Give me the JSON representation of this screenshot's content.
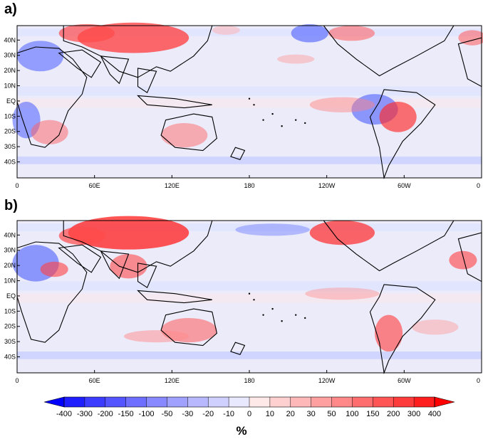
{
  "panels": [
    {
      "label": "a)"
    },
    {
      "label": "b)"
    }
  ],
  "lat_ticks": [
    "40N",
    "30N",
    "20N",
    "10N",
    "EQ",
    "10S",
    "20S",
    "30S",
    "40S"
  ],
  "lon_ticks": [
    "0",
    "60E",
    "120E",
    "180",
    "120W",
    "60W",
    "0"
  ],
  "colorbar": {
    "levels": [
      "-400",
      "-300",
      "-200",
      "-150",
      "-100",
      "-50",
      "-30",
      "-20",
      "-10",
      "0",
      "10",
      "20",
      "30",
      "50",
      "100",
      "150",
      "200",
      "300",
      "400"
    ],
    "colors": [
      "#0000ff",
      "#1e1eff",
      "#3c3cff",
      "#5555ff",
      "#6e6eff",
      "#8888ff",
      "#a0a0ff",
      "#b8b8ff",
      "#d0d0ff",
      "#e8e8ff",
      "#ffe8e8",
      "#ffd0d0",
      "#ffb8b8",
      "#ffa0a0",
      "#ff8888",
      "#ff6e6e",
      "#ff5555",
      "#ff3c3c",
      "#ff1e1e",
      "#ff0000"
    ],
    "unit": "%"
  },
  "colors": {
    "ocean_background": "#ebebfa",
    "positive": "#ff3030",
    "negative": "#3c50ff",
    "coastline": "#000000"
  }
}
